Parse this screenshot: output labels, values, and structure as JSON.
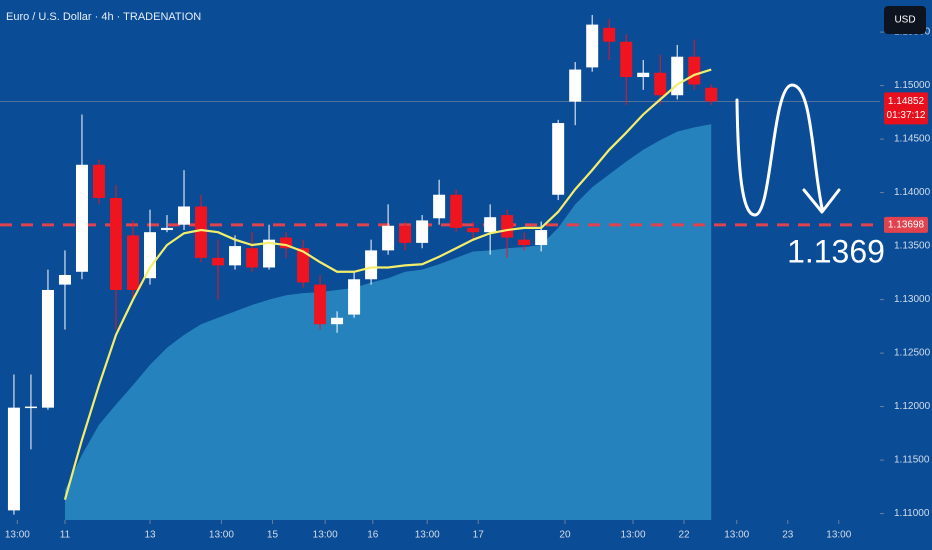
{
  "chart_data": {
    "type": "candlestick",
    "title": "Euro / U.S. Dollar · 4h · TRADENATION",
    "currency": "USD",
    "x": [
      0,
      1,
      2,
      3,
      4,
      5,
      6,
      7,
      8,
      9,
      10,
      11,
      12,
      13,
      14,
      15,
      16,
      17,
      18,
      19,
      20,
      21,
      22,
      23,
      24,
      25,
      26,
      27,
      28,
      29,
      30,
      31,
      32,
      33,
      34,
      35,
      36,
      37,
      38,
      39,
      40,
      41
    ],
    "open": [
      1.1103,
      1.1199,
      1.1199,
      1.1314,
      1.1326,
      1.1426,
      1.1395,
      1.136,
      1.132,
      1.1365,
      1.137,
      1.1387,
      1.1339,
      1.1332,
      1.1348,
      1.133,
      1.1358,
      1.1348,
      1.1314,
      1.1277,
      1.1286,
      1.1319,
      1.1346,
      1.1369,
      1.1353,
      1.1376,
      1.1398,
      1.1367,
      1.1363,
      1.1379,
      1.1356,
      1.1351,
      1.1398,
      1.1485,
      1.1517,
      1.1554,
      1.1541,
      1.1508,
      1.1512,
      1.1491,
      1.1527,
      1.1498
    ],
    "high": [
      1.123,
      1.123,
      1.1328,
      1.1346,
      1.1473,
      1.1431,
      1.1407,
      1.1374,
      1.1384,
      1.1379,
      1.1421,
      1.1398,
      1.1356,
      1.136,
      1.1363,
      1.137,
      1.1363,
      1.1356,
      1.1323,
      1.1289,
      1.1326,
      1.1356,
      1.1389,
      1.1373,
      1.1379,
      1.1412,
      1.1403,
      1.1373,
      1.1389,
      1.1384,
      1.1363,
      1.1373,
      1.1468,
      1.1522,
      1.1566,
      1.1562,
      1.1548,
      1.1524,
      1.1529,
      1.1538,
      1.1543,
      1.1501
    ],
    "low": [
      1.1099,
      1.116,
      1.1197,
      1.1272,
      1.1319,
      1.1389,
      1.1272,
      1.13,
      1.1314,
      1.1363,
      1.1365,
      1.1335,
      1.13,
      1.1328,
      1.1326,
      1.1328,
      1.1339,
      1.1311,
      1.1272,
      1.1269,
      1.1283,
      1.1314,
      1.1342,
      1.1346,
      1.1348,
      1.137,
      1.1363,
      1.1356,
      1.1342,
      1.1339,
      1.1346,
      1.1345,
      1.1393,
      1.1463,
      1.1513,
      1.1524,
      1.1482,
      1.1496,
      1.1482,
      1.1487,
      1.1496,
      1.1482
    ],
    "close": [
      1.1199,
      1.12,
      1.1309,
      1.1323,
      1.1426,
      1.1395,
      1.1309,
      1.1309,
      1.1363,
      1.1367,
      1.1387,
      1.1339,
      1.1332,
      1.135,
      1.133,
      1.1356,
      1.1348,
      1.1316,
      1.1277,
      1.1283,
      1.1319,
      1.1346,
      1.1369,
      1.1353,
      1.1374,
      1.1398,
      1.1367,
      1.1363,
      1.1377,
      1.1358,
      1.1351,
      1.1365,
      1.1465,
      1.1515,
      1.1557,
      1.1541,
      1.1508,
      1.1512,
      1.1491,
      1.1527,
      1.1501,
      1.14852
    ],
    "up_color": "#ffffff",
    "down_color": "#ee1420",
    "ema": {
      "color": "#f2ee6c",
      "values": [
        null,
        null,
        null,
        1.1113,
        1.1169,
        1.122,
        1.1267,
        1.13,
        1.133,
        1.1351,
        1.1362,
        1.1365,
        1.1363,
        1.1356,
        1.1351,
        1.1353,
        1.1351,
        1.1345,
        1.1335,
        1.1326,
        1.1326,
        1.133,
        1.133,
        1.1332,
        1.1333,
        1.134,
        1.1348,
        1.1356,
        1.1362,
        1.1365,
        1.1367,
        1.1367,
        1.1382,
        1.1403,
        1.1421,
        1.144,
        1.1456,
        1.1473,
        1.1487,
        1.1501,
        1.151,
        1.1515
      ]
    },
    "area": {
      "color": "#2a8cc4",
      "values": [
        null,
        null,
        null,
        1.1122,
        1.1155,
        1.1183,
        1.1202,
        1.122,
        1.1239,
        1.1255,
        1.1267,
        1.1277,
        1.1283,
        1.1289,
        1.1295,
        1.13,
        1.1304,
        1.1306,
        1.1307,
        1.1309,
        1.1311,
        1.1316,
        1.132,
        1.1326,
        1.1328,
        1.1333,
        1.1339,
        1.1345,
        1.1346,
        1.1348,
        1.1349,
        1.1351,
        1.1367,
        1.1389,
        1.1405,
        1.1417,
        1.1429,
        1.144,
        1.1449,
        1.1457,
        1.1461,
        1.1464
      ]
    },
    "xlim": [
      -0.82,
      50.1
    ],
    "xticks": [
      {
        "value": 0.2,
        "label": "13:00"
      },
      {
        "value": 3,
        "label": "11"
      },
      {
        "value": 8,
        "label": "13"
      },
      {
        "value": 12.2,
        "label": "13:00"
      },
      {
        "value": 15.2,
        "label": "15"
      },
      {
        "value": 18.3,
        "label": "13:00"
      },
      {
        "value": 21.1,
        "label": "16"
      },
      {
        "value": 24.3,
        "label": "13:00"
      },
      {
        "value": 27.3,
        "label": "17"
      },
      {
        "value": 32.4,
        "label": "20"
      },
      {
        "value": 36.4,
        "label": "13:00"
      },
      {
        "value": 39.4,
        "label": "22"
      },
      {
        "value": 42.5,
        "label": "13:00"
      },
      {
        "value": 45.5,
        "label": "23"
      },
      {
        "value": 48.5,
        "label": "13:00"
      }
    ],
    "ylim": [
      1.1094,
      1.158
    ],
    "yticks": [
      {
        "value": 1.11,
        "label": "1.11000"
      },
      {
        "value": 1.115,
        "label": "1.11500"
      },
      {
        "value": 1.12,
        "label": "1.12000"
      },
      {
        "value": 1.125,
        "label": "1.12500"
      },
      {
        "value": 1.13,
        "label": "1.13000"
      },
      {
        "value": 1.135,
        "label": "1.13500"
      },
      {
        "value": 1.14,
        "label": "1.14000"
      },
      {
        "value": 1.145,
        "label": "1.14500"
      },
      {
        "value": 1.15,
        "label": "1.15000"
      },
      {
        "value": 1.155,
        "label": "1.15500"
      }
    ],
    "last_price": {
      "value": 1.14852,
      "label": "1.14852"
    },
    "countdown": "01:37:12",
    "level": {
      "value": 1.13698,
      "label": "1.13698"
    },
    "annotation": "1.1369"
  }
}
